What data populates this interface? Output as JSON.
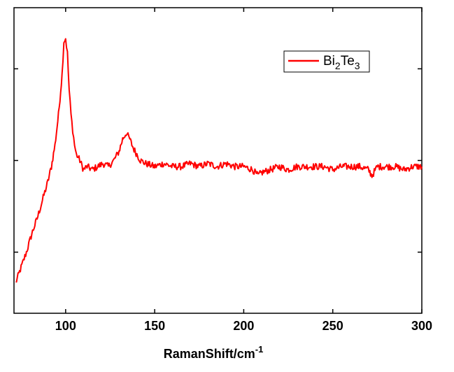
{
  "chart_data": {
    "type": "line",
    "xlabel_main": "RamanShift/cm",
    "xlabel_sup": "-1",
    "ylabel": "",
    "xlim": [
      71,
      300
    ],
    "ylim": [
      0,
      100
    ],
    "xticks": [
      100,
      150,
      200,
      250,
      300
    ],
    "xticklabels": [
      "100",
      "150",
      "200",
      "250",
      "300"
    ],
    "yticks": [
      20,
      50,
      80
    ],
    "grid": false,
    "legend_position": "top-right",
    "series": [
      {
        "name_base": "Bi",
        "name_sub1": "2",
        "name_mid": "Te",
        "name_sub2": "3",
        "color": "#ff0000",
        "x": [
          72,
          75,
          78,
          81,
          84,
          87,
          90,
          92,
          94,
          96,
          98,
          99,
          100,
          101,
          102,
          103,
          104,
          105,
          106,
          107,
          108,
          110,
          112,
          115,
          118,
          121,
          124,
          127,
          130,
          132,
          134,
          135,
          136,
          138,
          140,
          142,
          145,
          150,
          155,
          160,
          165,
          170,
          175,
          180,
          185,
          190,
          195,
          200,
          205,
          208,
          210,
          215,
          220,
          225,
          230,
          235,
          240,
          245,
          250,
          255,
          260,
          265,
          270,
          272,
          275,
          280,
          285,
          290,
          295,
          300
        ],
        "y": [
          10,
          15,
          20,
          26,
          31,
          37,
          43,
          48,
          55,
          65,
          78,
          89,
          90,
          85,
          73,
          65,
          60,
          55,
          52,
          51,
          50,
          47,
          48,
          47,
          48,
          49,
          48,
          50,
          53,
          57,
          59,
          58,
          57,
          54,
          52,
          50,
          49,
          48,
          49,
          48,
          48,
          49,
          48,
          49,
          48,
          49,
          48,
          48,
          47,
          45,
          46,
          47,
          48,
          47,
          48,
          48,
          48,
          48,
          47,
          48,
          48,
          48,
          47,
          45,
          48,
          48,
          48,
          47,
          48,
          48
        ]
      }
    ]
  }
}
